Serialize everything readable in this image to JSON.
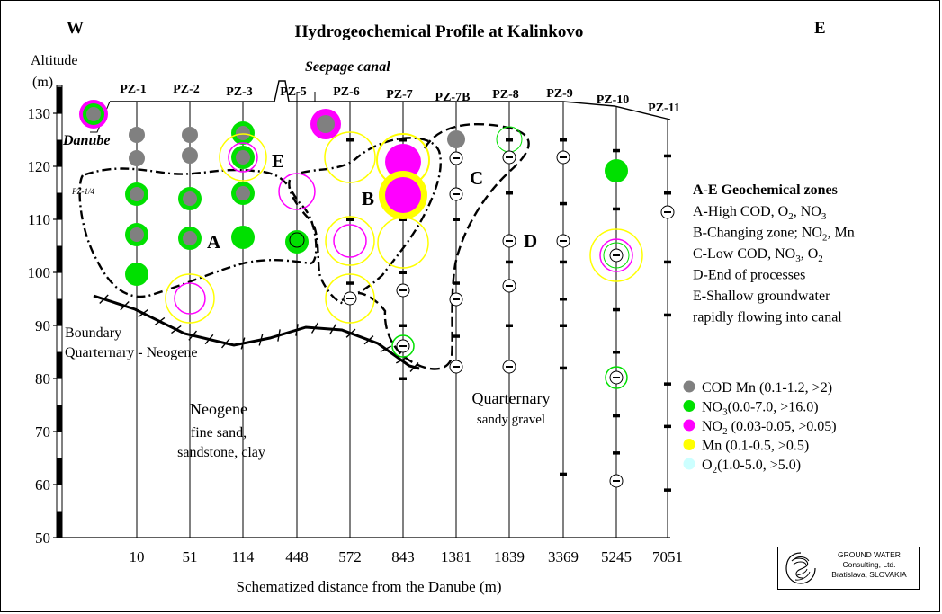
{
  "title": "Hydrogeochemical Profile at Kalinkovo",
  "west_label": "W",
  "east_label": "E",
  "y_axis_title": [
    "Altitude",
    "(m)"
  ],
  "x_axis_title": "Schematized distance from the Danube (m)",
  "seepage_canal": "Seepage canal",
  "danube_label": "Danube",
  "pz14_label": "PZ-1/4",
  "wells": [
    {
      "name": "PZ-1",
      "distance": "10"
    },
    {
      "name": "PZ-2",
      "distance": "51"
    },
    {
      "name": "PZ-3",
      "distance": "114"
    },
    {
      "name": "PZ-5",
      "distance": "448"
    },
    {
      "name": "PZ-6",
      "distance": "572"
    },
    {
      "name": "PZ-7",
      "distance": "843"
    },
    {
      "name": "PZ-7B",
      "distance": "1381"
    },
    {
      "name": "PZ-8",
      "distance": "1839"
    },
    {
      "name": "PZ-9",
      "distance": "3369"
    },
    {
      "name": "PZ-10",
      "distance": "5245"
    },
    {
      "name": "PZ-11",
      "distance": "7051"
    }
  ],
  "y_ticks": [
    "130",
    "120",
    "110",
    "100",
    "90",
    "80",
    "70",
    "60",
    "50"
  ],
  "zone_letters": [
    "A",
    "B",
    "C",
    "D",
    "E"
  ],
  "boundary_label": [
    "Boundary",
    "Quarternary - Neogene"
  ],
  "neogene_label": [
    "Neogene",
    "fine sand,",
    "sandstone, clay"
  ],
  "quarternary_label": [
    "Quarternary",
    "sandy gravel"
  ],
  "zones_legend": {
    "title": "A-E Geochemical zones",
    "items": [
      [
        "A-High COD, O",
        "2",
        ", NO",
        "3",
        ""
      ],
      [
        "B-Changing zone; NO",
        "2",
        ", Mn",
        "",
        ""
      ],
      [
        "C-Low COD, NO",
        "3",
        ", O",
        "2",
        ""
      ],
      [
        "D-End of processes",
        "",
        "",
        "",
        ""
      ],
      [
        "E-Shallow groundwater",
        "",
        "",
        "",
        ""
      ],
      [
        "rapidly flowing into canal",
        "",
        "",
        "",
        ""
      ]
    ]
  },
  "chem_legend": [
    {
      "pre": "COD Mn ",
      "sub": "",
      "post": "(0.1-1.2, >2)",
      "color": "#808080"
    },
    {
      "pre": "NO",
      "sub": "3",
      "post": "(0.0-7.0, >16.0)",
      "color": "#00e000"
    },
    {
      "pre": "NO",
      "sub": "2",
      "post": " (0.03-0.05, >0.05)",
      "color": "#ff00ff"
    },
    {
      "pre": "Mn ",
      "sub": "",
      "post": "(0.1-0.5, >0.5)",
      "color": "#ffff00"
    },
    {
      "pre": "O",
      "sub": "2",
      "post": "(1.0-5.0, >5.0)",
      "color": "#ccffff"
    }
  ],
  "logo": {
    "line1": "GROUND WATER",
    "line2": "Consulting, Ltd.",
    "line3": "Bratislava, SLOVAKIA"
  },
  "colors": {
    "cod": "#808080",
    "no3": "#00e000",
    "no2": "#ff00ff",
    "mn": "#ffff00",
    "o2": "#ccffff"
  }
}
